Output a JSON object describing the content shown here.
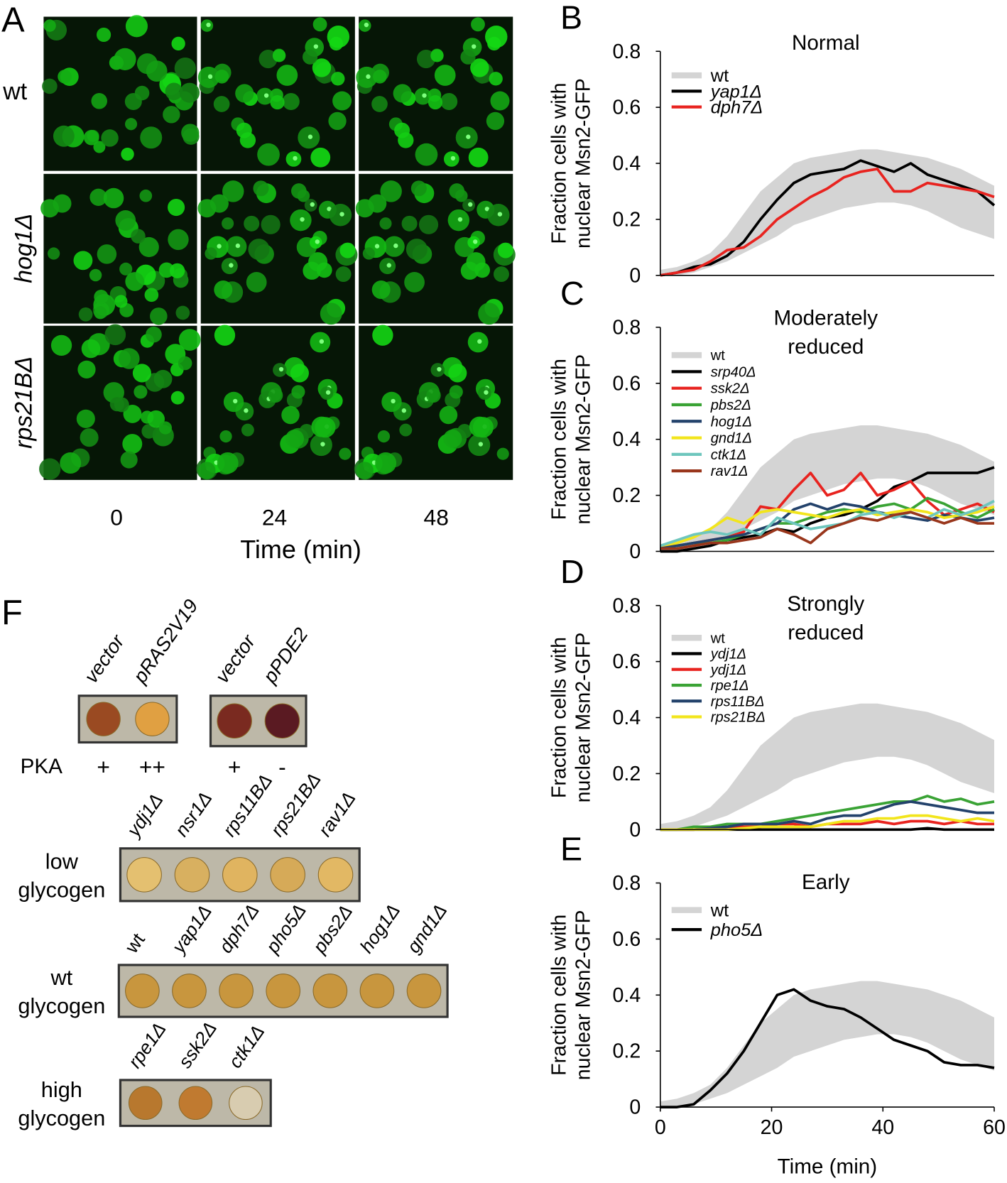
{
  "panel_a": {
    "label": "A",
    "rows": [
      "wt",
      "hog1Δ",
      "rps21BΔ"
    ],
    "columns": [
      "0",
      "24",
      "48"
    ],
    "xlabel": "Time (min)"
  },
  "panel_f": {
    "label": "F",
    "pka_plates": {
      "names": [
        "vector",
        "pRAS2V19",
        "vector",
        "pPDE2"
      ],
      "row_label": "PKA",
      "levels": [
        "+",
        "++",
        "+",
        "-"
      ]
    },
    "groups": [
      {
        "label": [
          "low",
          "glycogen"
        ],
        "names": [
          "ydj1Δ",
          "nsr1Δ",
          "rps11BΔ",
          "rps21BΔ",
          "rav1Δ"
        ]
      },
      {
        "label": [
          "wt",
          "glycogen"
        ],
        "names": [
          "wt",
          "yap1Δ",
          "dph7Δ",
          "pho5Δ",
          "pbs2Δ",
          "hog1Δ",
          "gnd1Δ"
        ]
      },
      {
        "label": [
          "high",
          "glycogen"
        ],
        "names": [
          "rpe1Δ",
          "ssk2Δ",
          "ctk1Δ"
        ]
      }
    ]
  },
  "chart_data": [
    {
      "type": "line",
      "label": "B",
      "title": [
        "Normal"
      ],
      "ylabel": [
        "Fraction cells with",
        "nuclear Msn2-GFP"
      ],
      "x": [
        0,
        3,
        6,
        9,
        12,
        15,
        18,
        21,
        24,
        27,
        30,
        33,
        36,
        39,
        42,
        45,
        48,
        51,
        54,
        57,
        60
      ],
      "xlim": [
        0,
        60
      ],
      "ylim": [
        0,
        0.8
      ],
      "yticks": [
        0,
        0.2,
        0.4,
        0.6,
        0.8
      ],
      "series": [
        {
          "name": "wt",
          "color": "#d4d4d4",
          "lower": [
            0,
            0,
            0.01,
            0.03,
            0.05,
            0.08,
            0.11,
            0.14,
            0.18,
            0.2,
            0.22,
            0.24,
            0.25,
            0.26,
            0.26,
            0.25,
            0.23,
            0.2,
            0.17,
            0.15,
            0.13
          ],
          "values": [
            0.02,
            0.03,
            0.05,
            0.08,
            0.14,
            0.22,
            0.3,
            0.35,
            0.4,
            0.42,
            0.43,
            0.44,
            0.45,
            0.45,
            0.44,
            0.43,
            0.42,
            0.4,
            0.38,
            0.35,
            0.32
          ]
        },
        {
          "name": "yap1Δ",
          "color": "#000000",
          "values": [
            0,
            0.01,
            0.03,
            0.04,
            0.07,
            0.12,
            0.2,
            0.27,
            0.33,
            0.36,
            0.37,
            0.38,
            0.41,
            0.39,
            0.37,
            0.4,
            0.36,
            0.34,
            0.32,
            0.3,
            0.25
          ]
        },
        {
          "name": "dph7Δ",
          "color": "#e8231f",
          "values": [
            0,
            0.01,
            0.02,
            0.05,
            0.09,
            0.1,
            0.14,
            0.2,
            0.24,
            0.28,
            0.31,
            0.35,
            0.37,
            0.38,
            0.3,
            0.3,
            0.33,
            0.32,
            0.31,
            0.3,
            0.28
          ]
        }
      ]
    },
    {
      "type": "line",
      "label": "C",
      "title": [
        "Moderately",
        "reduced"
      ],
      "ylabel": [
        "Fraction cells with",
        "nuclear Msn2-GFP"
      ],
      "x": [
        0,
        3,
        6,
        9,
        12,
        15,
        18,
        21,
        24,
        27,
        30,
        33,
        36,
        39,
        42,
        45,
        48,
        51,
        54,
        57,
        60
      ],
      "xlim": [
        0,
        60
      ],
      "ylim": [
        0,
        0.8
      ],
      "yticks": [
        0,
        0.2,
        0.4,
        0.6,
        0.8
      ],
      "series": [
        {
          "name": "wt",
          "color": "#d4d4d4",
          "lower": [
            0,
            0,
            0.01,
            0.03,
            0.05,
            0.08,
            0.11,
            0.14,
            0.18,
            0.2,
            0.22,
            0.24,
            0.25,
            0.26,
            0.26,
            0.25,
            0.23,
            0.2,
            0.17,
            0.15,
            0.13
          ],
          "values": [
            0.02,
            0.03,
            0.05,
            0.08,
            0.14,
            0.22,
            0.3,
            0.35,
            0.4,
            0.42,
            0.43,
            0.44,
            0.45,
            0.45,
            0.44,
            0.43,
            0.42,
            0.4,
            0.38,
            0.35,
            0.32
          ]
        },
        {
          "name": "srp40Δ",
          "color": "#000000",
          "values": [
            0,
            0,
            0.01,
            0.02,
            0.04,
            0.05,
            0.06,
            0.08,
            0.07,
            0.1,
            0.12,
            0.13,
            0.15,
            0.18,
            0.23,
            0.25,
            0.28,
            0.28,
            0.28,
            0.28,
            0.3
          ]
        },
        {
          "name": "ssk2Δ",
          "color": "#e8231f",
          "values": [
            0.02,
            0.02,
            0.03,
            0.04,
            0.05,
            0.07,
            0.16,
            0.15,
            0.22,
            0.28,
            0.2,
            0.22,
            0.28,
            0.2,
            0.22,
            0.25,
            0.18,
            0.13,
            0.15,
            0.17,
            0.14
          ]
        },
        {
          "name": "pbs2Δ",
          "color": "#3aa335",
          "values": [
            0.01,
            0.02,
            0.03,
            0.03,
            0.04,
            0.06,
            0.08,
            0.1,
            0.1,
            0.12,
            0.14,
            0.15,
            0.14,
            0.16,
            0.17,
            0.15,
            0.19,
            0.17,
            0.14,
            0.12,
            0.15
          ]
        },
        {
          "name": "hog1Δ",
          "color": "#23426b",
          "values": [
            0.01,
            0.02,
            0.03,
            0.04,
            0.05,
            0.06,
            0.08,
            0.1,
            0.15,
            0.17,
            0.15,
            0.17,
            0.16,
            0.14,
            0.13,
            0.12,
            0.11,
            0.13,
            0.12,
            0.11,
            0.12
          ]
        },
        {
          "name": "gnd1Δ",
          "color": "#f2e51c",
          "values": [
            0.02,
            0.03,
            0.05,
            0.08,
            0.12,
            0.1,
            0.14,
            0.15,
            0.14,
            0.13,
            0.12,
            0.14,
            0.15,
            0.13,
            0.14,
            0.15,
            0.14,
            0.12,
            0.13,
            0.14,
            0.16
          ]
        },
        {
          "name": "ctk1Δ",
          "color": "#6ec6bd",
          "values": [
            0.02,
            0.04,
            0.06,
            0.07,
            0.06,
            0.08,
            0.06,
            0.12,
            0.1,
            0.08,
            0.09,
            0.1,
            0.13,
            0.14,
            0.12,
            0.14,
            0.12,
            0.15,
            0.13,
            0.15,
            0.18
          ]
        },
        {
          "name": "rav1Δ",
          "color": "#99361c",
          "values": [
            0.01,
            0.01,
            0.02,
            0.03,
            0.03,
            0.04,
            0.05,
            0.08,
            0.06,
            0.03,
            0.08,
            0.1,
            0.12,
            0.11,
            0.13,
            0.14,
            0.12,
            0.1,
            0.12,
            0.1,
            0.1
          ]
        }
      ]
    },
    {
      "type": "line",
      "label": "D",
      "title": [
        "Strongly",
        "reduced"
      ],
      "ylabel": [
        "Fraction cells with",
        "nuclear Msn2-GFP"
      ],
      "x": [
        0,
        3,
        6,
        9,
        12,
        15,
        18,
        21,
        24,
        27,
        30,
        33,
        36,
        39,
        42,
        45,
        48,
        51,
        54,
        57,
        60
      ],
      "xlim": [
        0,
        60
      ],
      "ylim": [
        0,
        0.8
      ],
      "yticks": [
        0,
        0.2,
        0.4,
        0.6,
        0.8
      ],
      "series": [
        {
          "name": "wt",
          "color": "#d4d4d4",
          "lower": [
            0,
            0,
            0.01,
            0.03,
            0.05,
            0.08,
            0.11,
            0.14,
            0.18,
            0.2,
            0.22,
            0.24,
            0.25,
            0.26,
            0.26,
            0.25,
            0.23,
            0.2,
            0.17,
            0.15,
            0.13
          ],
          "values": [
            0.02,
            0.03,
            0.05,
            0.08,
            0.14,
            0.22,
            0.3,
            0.35,
            0.4,
            0.42,
            0.43,
            0.44,
            0.45,
            0.45,
            0.44,
            0.43,
            0.42,
            0.4,
            0.38,
            0.35,
            0.32
          ]
        },
        {
          "name": "ydj1Δ",
          "color": "#000000",
          "values": [
            0,
            0,
            0,
            0,
            0,
            0,
            0,
            0,
            0,
            0,
            0,
            0,
            0,
            0,
            0,
            0,
            0.005,
            0,
            0,
            0,
            0
          ]
        },
        {
          "name": "ydj1Δ",
          "color": "#e8231f",
          "values": [
            0,
            0,
            0,
            0.005,
            0.01,
            0.01,
            0.01,
            0.02,
            0.02,
            0.01,
            0.02,
            0.02,
            0.02,
            0.03,
            0.02,
            0.03,
            0.03,
            0.02,
            0.03,
            0.02,
            0.02
          ]
        },
        {
          "name": "rpe1Δ",
          "color": "#3aa335",
          "values": [
            0,
            0,
            0.01,
            0.01,
            0.02,
            0.02,
            0.02,
            0.03,
            0.04,
            0.05,
            0.06,
            0.07,
            0.08,
            0.09,
            0.1,
            0.1,
            0.12,
            0.1,
            0.11,
            0.09,
            0.1
          ]
        },
        {
          "name": "rps11BΔ",
          "color": "#23426b",
          "values": [
            0,
            0,
            0,
            0.005,
            0.01,
            0.02,
            0.02,
            0.02,
            0.03,
            0.02,
            0.04,
            0.05,
            0.05,
            0.07,
            0.09,
            0.1,
            0.09,
            0.08,
            0.07,
            0.06,
            0.06
          ]
        },
        {
          "name": "rps21BΔ",
          "color": "#f2e51c",
          "values": [
            0,
            0,
            0,
            0,
            0,
            0.005,
            0.01,
            0.01,
            0.01,
            0.01,
            0.02,
            0.03,
            0.03,
            0.04,
            0.04,
            0.05,
            0.05,
            0.04,
            0.03,
            0.04,
            0.03
          ]
        }
      ]
    },
    {
      "type": "line",
      "label": "E",
      "title": [
        "Early"
      ],
      "ylabel": [
        "Fraction cells with",
        "nuclear Msn2-GFP"
      ],
      "xlabel": "Time (min)",
      "x": [
        0,
        3,
        6,
        9,
        12,
        15,
        18,
        21,
        24,
        27,
        30,
        33,
        36,
        39,
        42,
        45,
        48,
        51,
        54,
        57,
        60
      ],
      "xlim": [
        0,
        60
      ],
      "ylim": [
        0,
        0.8
      ],
      "yticks": [
        0,
        0.2,
        0.4,
        0.6,
        0.8
      ],
      "xticks": [
        0,
        20,
        40,
        60
      ],
      "series": [
        {
          "name": "wt",
          "color": "#d4d4d4",
          "lower": [
            0,
            0,
            0.01,
            0.03,
            0.05,
            0.08,
            0.11,
            0.14,
            0.18,
            0.2,
            0.22,
            0.24,
            0.25,
            0.26,
            0.26,
            0.25,
            0.23,
            0.2,
            0.17,
            0.15,
            0.13
          ],
          "values": [
            0.02,
            0.03,
            0.05,
            0.08,
            0.14,
            0.22,
            0.3,
            0.35,
            0.4,
            0.42,
            0.43,
            0.44,
            0.45,
            0.45,
            0.44,
            0.43,
            0.42,
            0.4,
            0.38,
            0.35,
            0.32
          ]
        },
        {
          "name": "pho5Δ",
          "color": "#000000",
          "values": [
            0,
            0,
            0.01,
            0.06,
            0.12,
            0.2,
            0.3,
            0.4,
            0.42,
            0.38,
            0.36,
            0.35,
            0.32,
            0.28,
            0.24,
            0.22,
            0.2,
            0.16,
            0.15,
            0.15,
            0.14
          ]
        }
      ]
    }
  ]
}
